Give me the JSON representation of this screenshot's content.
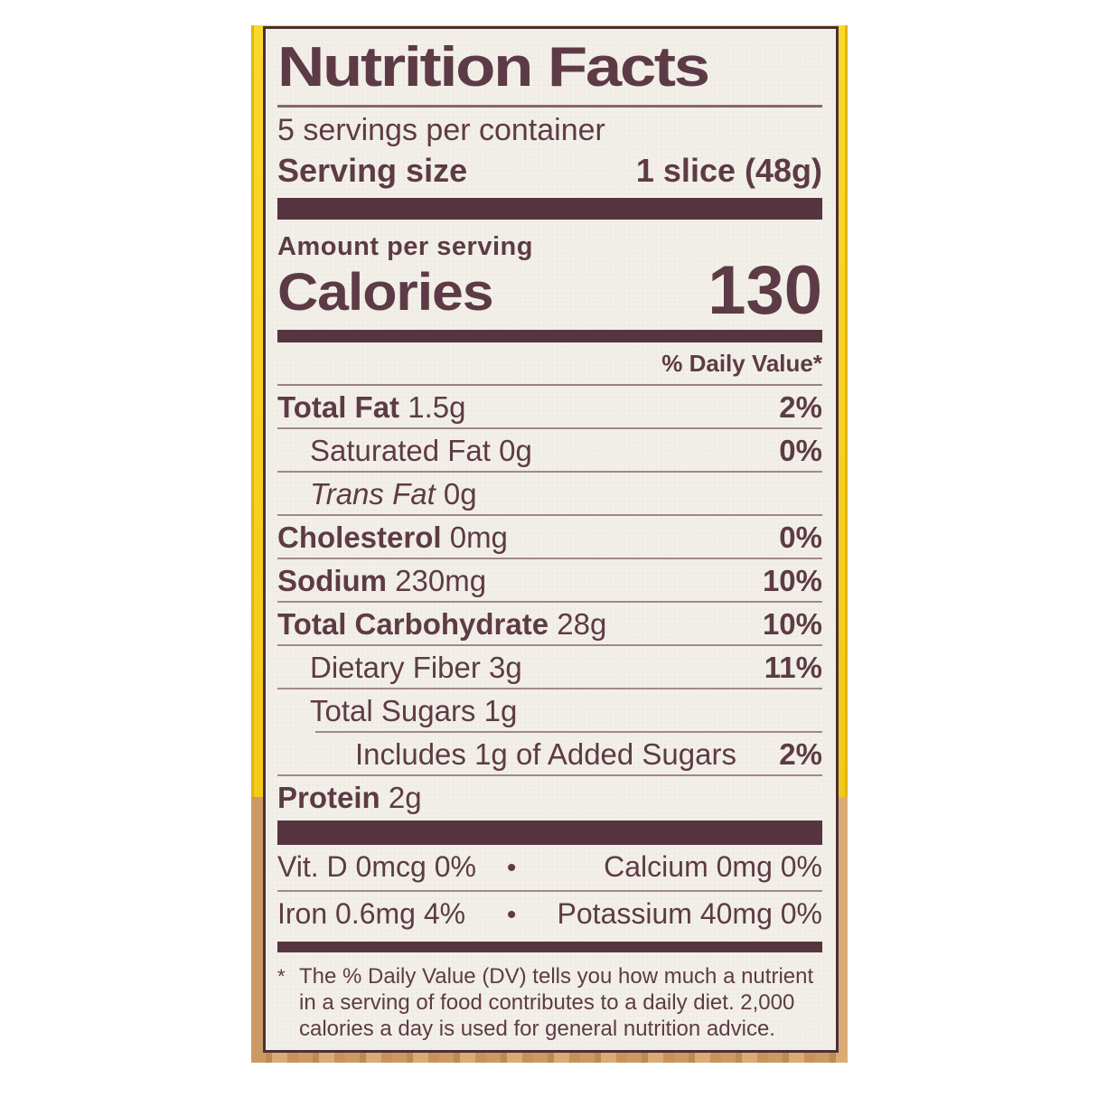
{
  "label": {
    "title": "Nutrition Facts",
    "servings_per_container": "5 servings per container",
    "serving_size_label": "Serving size",
    "serving_size_value": "1 slice (48g)",
    "amount_per_serving": "Amount per serving",
    "calories_label": "Calories",
    "calories_value": "130",
    "daily_value_header": "% Daily Value*",
    "rows": [
      {
        "name": "Total Fat",
        "amount": "1.5g",
        "dv": "2%",
        "bold": true,
        "italic": false,
        "indent": 0,
        "rule": true,
        "rule_indented": false
      },
      {
        "name": "Saturated Fat",
        "amount": "0g",
        "dv": "0%",
        "bold": false,
        "italic": false,
        "indent": 1,
        "rule": true,
        "rule_indented": false
      },
      {
        "name": "Trans Fat",
        "amount": "0g",
        "dv": "",
        "bold": false,
        "italic": true,
        "indent": 1,
        "rule": true,
        "rule_indented": false
      },
      {
        "name": "Cholesterol",
        "amount": "0mg",
        "dv": "0%",
        "bold": true,
        "italic": false,
        "indent": 0,
        "rule": true,
        "rule_indented": false
      },
      {
        "name": "Sodium",
        "amount": "230mg",
        "dv": "10%",
        "bold": true,
        "italic": false,
        "indent": 0,
        "rule": true,
        "rule_indented": false
      },
      {
        "name": "Total Carbohydrate",
        "amount": "28g",
        "dv": "10%",
        "bold": true,
        "italic": false,
        "indent": 0,
        "rule": true,
        "rule_indented": false
      },
      {
        "name": "Dietary Fiber",
        "amount": "3g",
        "dv": "11%",
        "bold": false,
        "italic": false,
        "indent": 1,
        "rule": true,
        "rule_indented": false
      },
      {
        "name": "Total Sugars",
        "amount": "1g",
        "dv": "",
        "bold": false,
        "italic": false,
        "indent": 1,
        "rule": true,
        "rule_indented": true
      },
      {
        "name": "Includes 1g of Added Sugars",
        "amount": "",
        "dv": "2%",
        "bold": false,
        "italic": false,
        "indent": 2,
        "rule": true,
        "rule_indented": false
      },
      {
        "name": "Protein",
        "amount": "2g",
        "dv": "",
        "bold": true,
        "italic": false,
        "indent": 0,
        "rule": false,
        "rule_indented": false
      }
    ],
    "separator_dot": "•",
    "micronutrients": [
      {
        "left": "Vit. D 0mcg 0%",
        "right": "Calcium 0mg 0%",
        "rule": true
      },
      {
        "left": "Iron 0.6mg 4%",
        "right": "Potassium 40mg 0%",
        "rule": false
      }
    ],
    "footnote_marker": "*",
    "footnote": "The % Daily Value (DV) tells you how much a nutrient in a serving of food contributes to a daily diet. 2,000 calories a day is used for general nutrition advice.",
    "colors": {
      "ink": "#5d3b46",
      "bar": "#573540",
      "rule": "#6a434f",
      "bg": "#f2efe8",
      "yellow": "#f9d220",
      "wood": "#cb9a63",
      "border": "#4a2f39"
    }
  }
}
